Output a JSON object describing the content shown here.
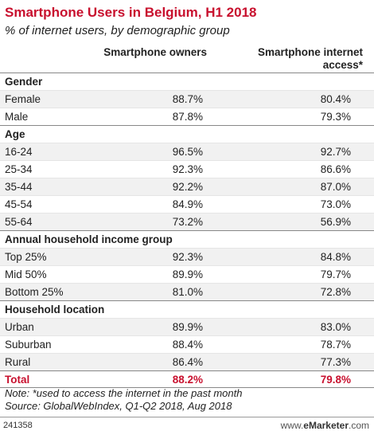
{
  "title": "Smartphone Users in Belgium, H1 2018",
  "subtitle": "% of internet users, by demographic group",
  "columns": {
    "col1": "Smartphone owners",
    "col2_line1": "Smartphone internet",
    "col2_line2": "access*"
  },
  "rows": [
    {
      "label": "Gender",
      "group": true
    },
    {
      "label": "Female",
      "v1": "88.7%",
      "v2": "80.4%"
    },
    {
      "label": "Male",
      "v1": "87.8%",
      "v2": "79.3%"
    },
    {
      "label": "Age",
      "group": true
    },
    {
      "label": "16-24",
      "v1": "96.5%",
      "v2": "92.7%"
    },
    {
      "label": "25-34",
      "v1": "92.3%",
      "v2": "86.6%"
    },
    {
      "label": "35-44",
      "v1": "92.2%",
      "v2": "87.0%"
    },
    {
      "label": "45-54",
      "v1": "84.9%",
      "v2": "73.0%"
    },
    {
      "label": "55-64",
      "v1": "73.2%",
      "v2": "56.9%"
    },
    {
      "label": "Annual household income group",
      "group": true
    },
    {
      "label": "Top 25%",
      "v1": "92.3%",
      "v2": "84.8%"
    },
    {
      "label": "Mid 50%",
      "v1": "89.9%",
      "v2": "79.7%"
    },
    {
      "label": "Bottom 25%",
      "v1": "81.0%",
      "v2": "72.8%"
    },
    {
      "label": "Household location",
      "group": true
    },
    {
      "label": "Urban",
      "v1": "89.9%",
      "v2": "83.0%"
    },
    {
      "label": "Suburban",
      "v1": "88.4%",
      "v2": "78.7%"
    },
    {
      "label": "Rural",
      "v1": "86.4%",
      "v2": "77.3%"
    },
    {
      "label": "Total",
      "v1": "88.2%",
      "v2": "79.8%",
      "total": true
    }
  ],
  "note_line1": "Note: *used to access the internet in the past month",
  "note_line2": "Source: GlobalWebIndex, Q1-Q2 2018, Aug 2018",
  "footer_id": "241358",
  "brand_prefix": "www.",
  "brand_name": "eMarketer",
  "brand_suffix": ".com",
  "chart_data": {
    "type": "table",
    "title": "Smartphone Users in Belgium, H1 2018",
    "subtitle": "% of internet users, by demographic group",
    "columns": [
      "Smartphone owners",
      "Smartphone internet access*"
    ],
    "groups": [
      {
        "name": "Gender",
        "rows": [
          {
            "label": "Female",
            "values": [
              88.7,
              80.4
            ]
          },
          {
            "label": "Male",
            "values": [
              87.8,
              79.3
            ]
          }
        ]
      },
      {
        "name": "Age",
        "rows": [
          {
            "label": "16-24",
            "values": [
              96.5,
              92.7
            ]
          },
          {
            "label": "25-34",
            "values": [
              92.3,
              86.6
            ]
          },
          {
            "label": "35-44",
            "values": [
              92.2,
              87.0
            ]
          },
          {
            "label": "45-54",
            "values": [
              84.9,
              73.0
            ]
          },
          {
            "label": "55-64",
            "values": [
              73.2,
              56.9
            ]
          }
        ]
      },
      {
        "name": "Annual household income group",
        "rows": [
          {
            "label": "Top 25%",
            "values": [
              92.3,
              84.8
            ]
          },
          {
            "label": "Mid 50%",
            "values": [
              89.9,
              79.7
            ]
          },
          {
            "label": "Bottom 25%",
            "values": [
              81.0,
              72.8
            ]
          }
        ]
      },
      {
        "name": "Household location",
        "rows": [
          {
            "label": "Urban",
            "values": [
              89.9,
              83.0
            ]
          },
          {
            "label": "Suburban",
            "values": [
              88.4,
              78.7
            ]
          },
          {
            "label": "Rural",
            "values": [
              86.4,
              77.3
            ]
          }
        ]
      }
    ],
    "total": {
      "label": "Total",
      "values": [
        88.2,
        79.8
      ]
    }
  }
}
